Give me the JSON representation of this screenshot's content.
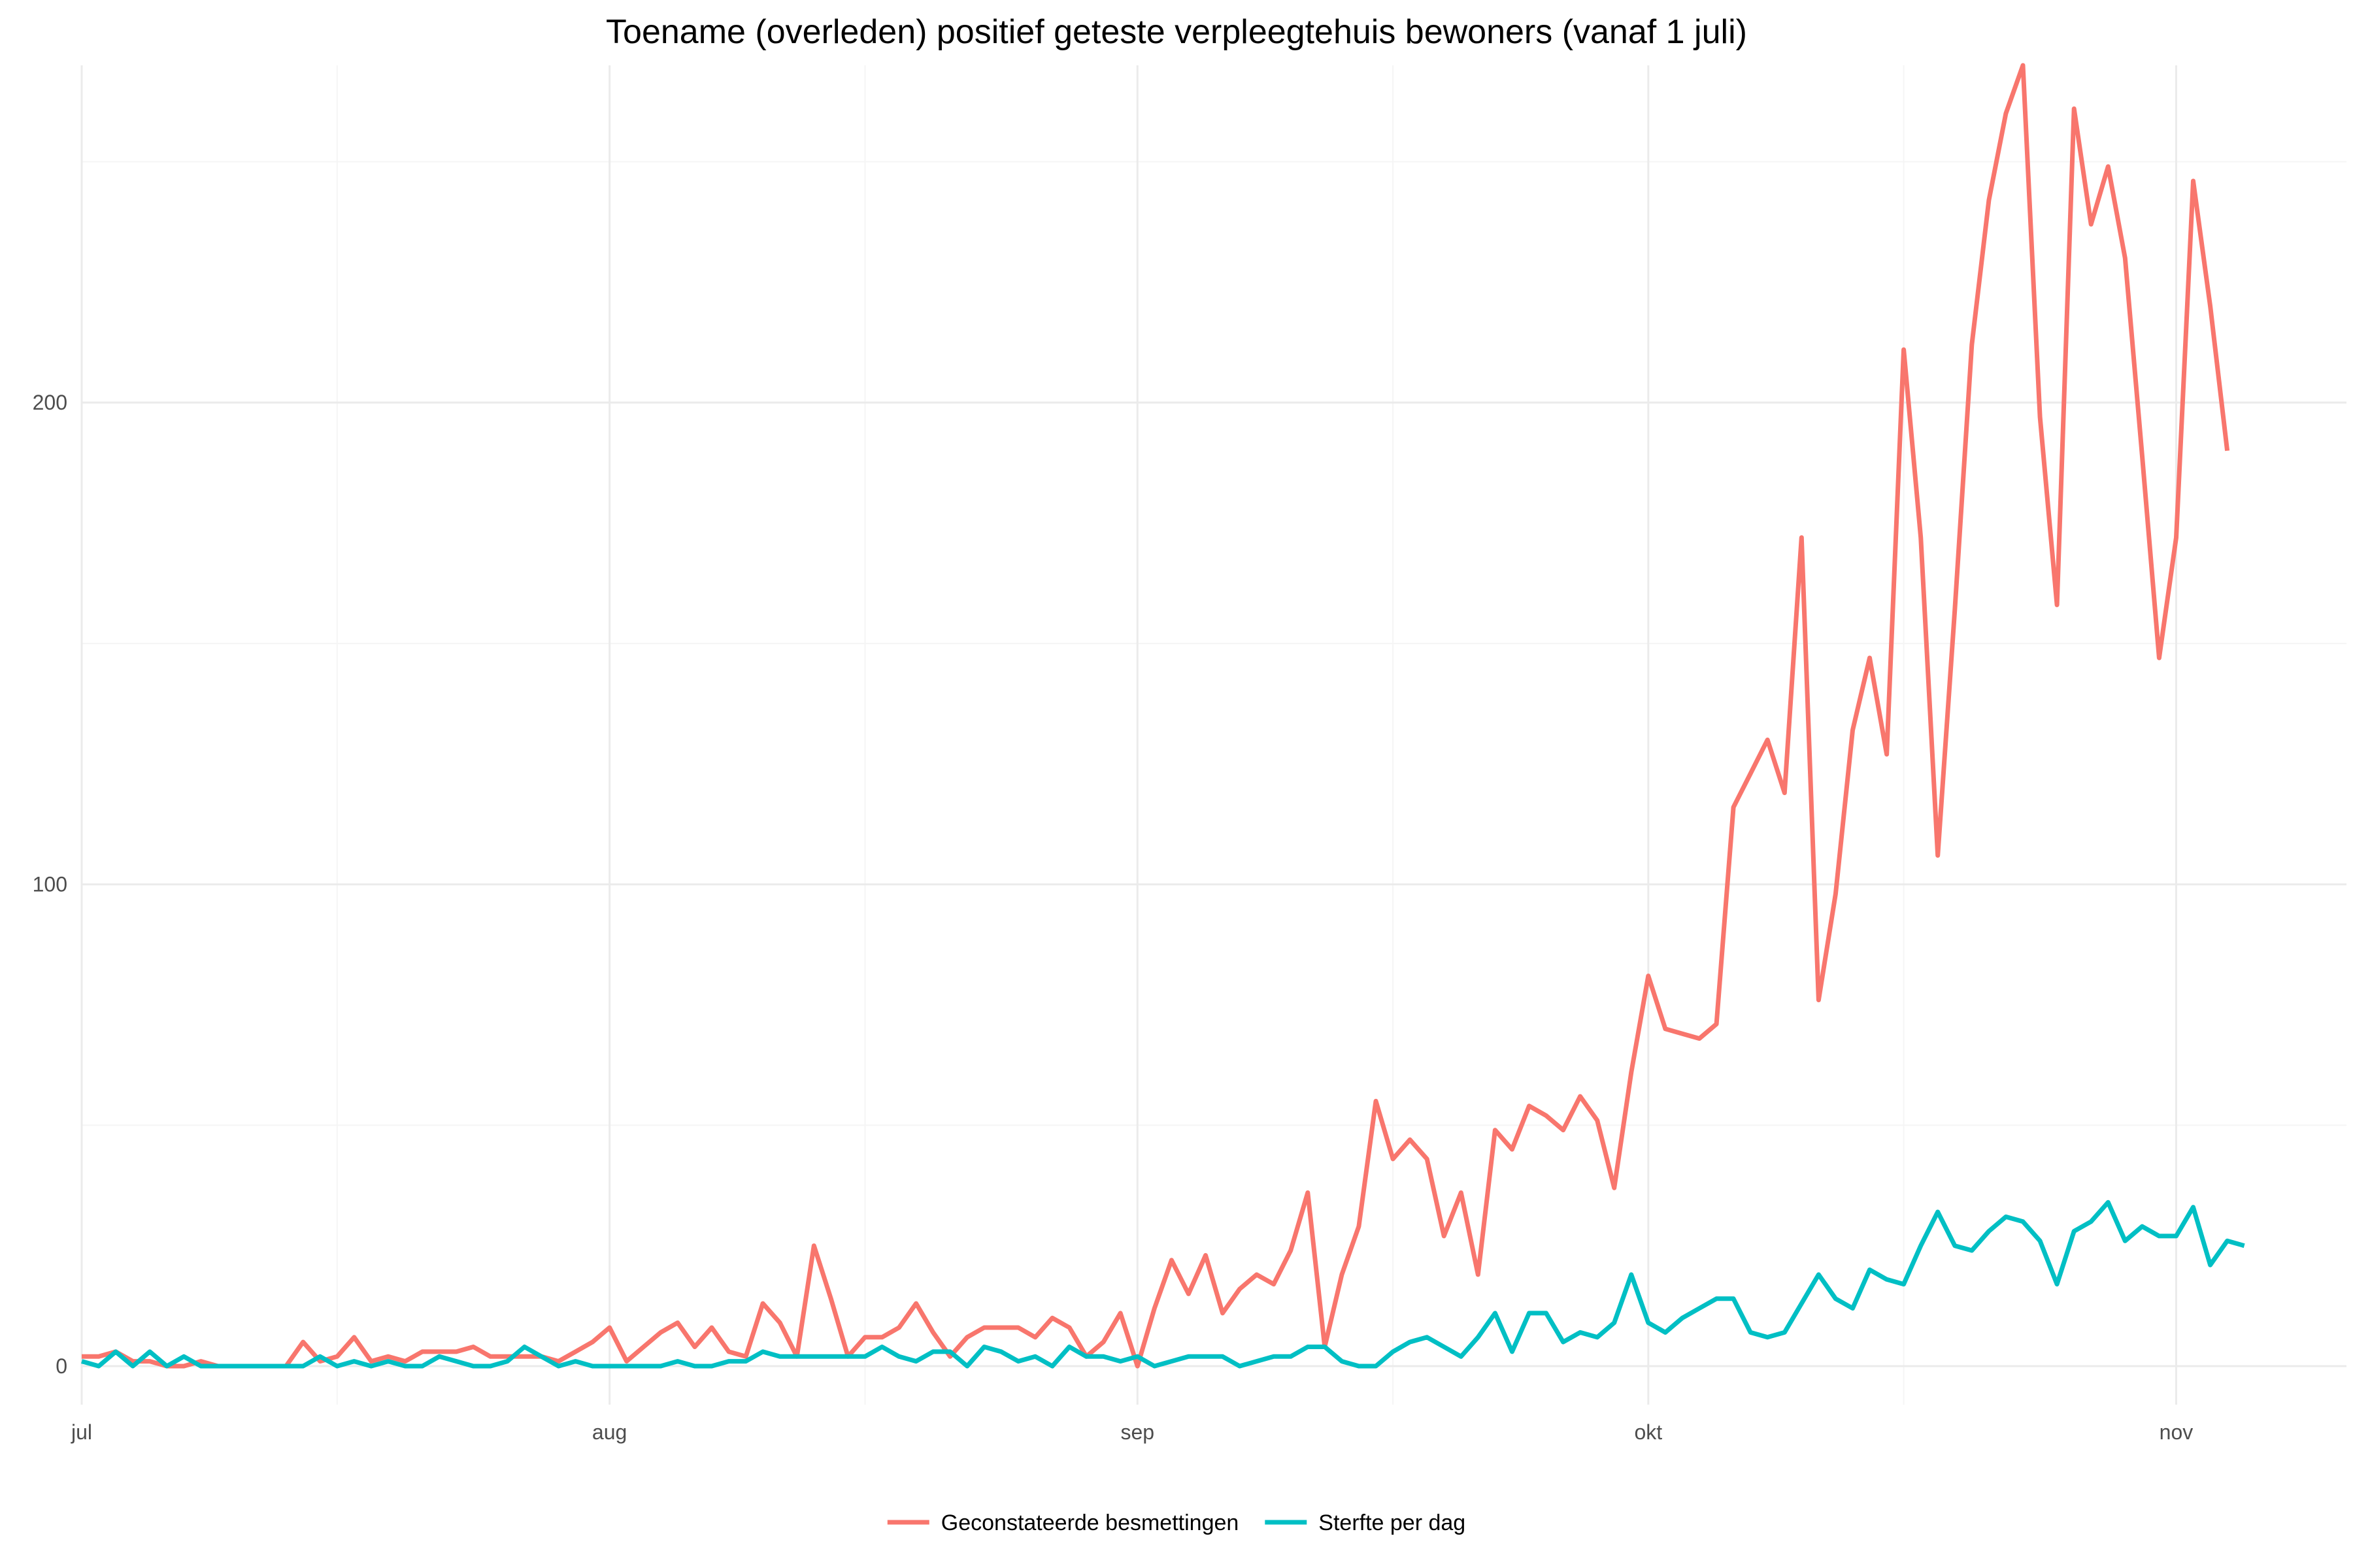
{
  "chart_data": {
    "type": "line",
    "title": "Toename (overleden) positief geteste verpleegtehuis bewoners (vanaf 1 juli)",
    "xlabel": "",
    "ylabel": "",
    "x_start": "2020-07-01",
    "x_end": "2020-11-07",
    "xlim": [
      "2020-07-01",
      "2020-11-11"
    ],
    "ylim": [
      -8,
      270
    ],
    "x_ticks": [
      {
        "date": "2020-07-01",
        "label": "jul"
      },
      {
        "date": "2020-08-01",
        "label": "aug"
      },
      {
        "date": "2020-09-01",
        "label": "sep"
      },
      {
        "date": "2020-10-01",
        "label": "okt"
      },
      {
        "date": "2020-11-01",
        "label": "nov"
      }
    ],
    "x_minor_ticks": [
      "2020-07-16",
      "2020-08-16",
      "2020-09-16",
      "2020-10-16"
    ],
    "y_ticks": [
      0,
      100,
      200
    ],
    "y_minor_ticks": [
      50,
      150,
      250
    ],
    "grid": true,
    "legend": "bottom",
    "series": [
      {
        "name": "Geconstateerde besmettingen",
        "color": "#F8766D",
        "values": [
          2,
          2,
          3,
          1,
          1,
          0,
          0,
          1,
          0,
          0,
          0,
          0,
          0,
          5,
          1,
          2,
          6,
          1,
          2,
          1,
          3,
          3,
          3,
          4,
          2,
          2,
          2,
          2,
          1,
          3,
          5,
          8,
          1,
          4,
          7,
          9,
          4,
          8,
          3,
          2,
          13,
          9,
          2,
          25,
          14,
          2,
          6,
          6,
          8,
          13,
          7,
          2,
          6,
          8,
          8,
          8,
          6,
          10,
          8,
          2,
          5,
          11,
          0,
          12,
          22,
          15,
          23,
          11,
          16,
          19,
          17,
          24,
          36,
          4,
          19,
          29,
          55,
          43,
          47,
          43,
          27,
          36,
          19,
          49,
          45,
          54,
          52,
          49,
          56,
          51,
          37,
          61,
          81,
          70,
          69,
          68,
          71,
          116,
          123,
          130,
          119,
          172,
          76,
          98,
          132,
          147,
          127,
          211,
          172,
          106,
          157,
          212,
          242,
          260,
          270,
          197,
          158,
          261,
          237,
          249,
          230,
          189,
          147,
          172,
          246,
          220,
          190
        ]
      },
      {
        "name": "Sterfte per dag",
        "color": "#00BFC4",
        "values": [
          1,
          0,
          3,
          0,
          3,
          0,
          2,
          0,
          0,
          0,
          0,
          0,
          0,
          0,
          2,
          0,
          1,
          0,
          1,
          0,
          0,
          2,
          1,
          0,
          0,
          1,
          4,
          2,
          0,
          1,
          0,
          0,
          0,
          0,
          0,
          1,
          0,
          0,
          1,
          1,
          3,
          2,
          2,
          2,
          2,
          2,
          2,
          4,
          2,
          1,
          3,
          3,
          0,
          4,
          3,
          1,
          2,
          0,
          4,
          2,
          2,
          1,
          2,
          0,
          1,
          2,
          2,
          2,
          0,
          1,
          2,
          2,
          4,
          4,
          1,
          0,
          0,
          3,
          5,
          6,
          4,
          2,
          6,
          11,
          3,
          11,
          11,
          5,
          7,
          6,
          9,
          19,
          9,
          7,
          10,
          12,
          14,
          14,
          7,
          6,
          7,
          13,
          19,
          14,
          12,
          20,
          18,
          17,
          25,
          32,
          25,
          24,
          28,
          31,
          30,
          26,
          17,
          28,
          30,
          34,
          26,
          29,
          27,
          27,
          33,
          21,
          26,
          25
        ]
      }
    ]
  }
}
